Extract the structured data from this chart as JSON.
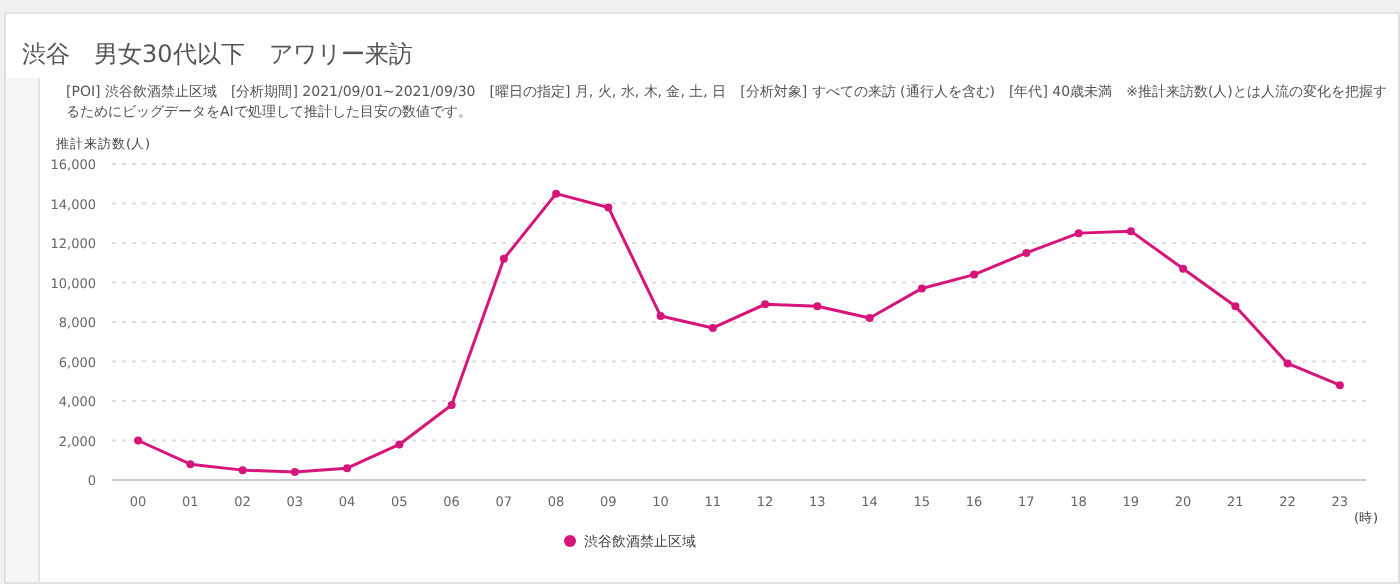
{
  "chart_data": {
    "type": "line",
    "title": "渋谷　男女30代以下　アワリー来訪",
    "subtitle": "[POI] 渋谷飲酒禁止区域　[分析期間] 2021/09/01~2021/09/30　[曜日の指定] 月, 火, 水, 木, 金, 土, 日　[分析対象] すべての来訪 (通行人を含む)　[年代] 40歳未満　※推計来訪数(人)とは人流の変化を把握するためにビッグデータをAIで処理して推計した目安の数値です。",
    "ylabel": "推計来訪数(人)",
    "xlabel": "(時)",
    "categories": [
      "00",
      "01",
      "02",
      "03",
      "04",
      "05",
      "06",
      "07",
      "08",
      "09",
      "10",
      "11",
      "12",
      "13",
      "14",
      "15",
      "16",
      "17",
      "18",
      "19",
      "20",
      "21",
      "22",
      "23"
    ],
    "series": [
      {
        "name": "渋谷飲酒禁止区域",
        "color": "#d6157a",
        "values": [
          2000,
          800,
          500,
          400,
          600,
          1800,
          3800,
          11200,
          14500,
          13800,
          8300,
          7700,
          8900,
          8800,
          8200,
          9700,
          10400,
          11500,
          12500,
          12600,
          10700,
          8800,
          5900,
          4800
        ]
      }
    ],
    "ylim": [
      0,
      16000
    ],
    "yticks": [
      0,
      {
        "value": 2000,
        "label": "2,000"
      },
      {
        "value": 4000,
        "label": "4,000"
      },
      {
        "value": 6000,
        "label": "6,000"
      },
      {
        "value": 8000,
        "label": "8,000"
      },
      {
        "value": 10000,
        "label": "10,000"
      },
      {
        "value": 12000,
        "label": "12,000"
      },
      {
        "value": 14000,
        "label": "14,000"
      },
      {
        "value": 16000,
        "label": "16,000"
      }
    ],
    "grid": "y",
    "legend": "bottom",
    "marker": "circle"
  }
}
